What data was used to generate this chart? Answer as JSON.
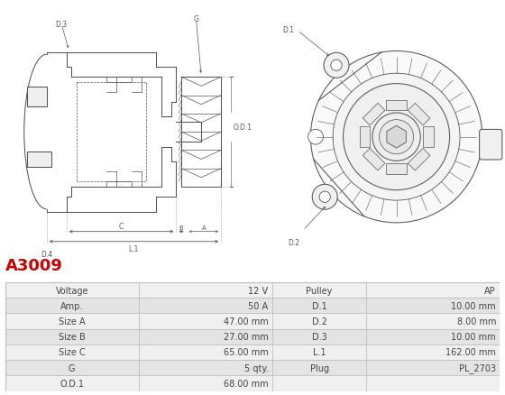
{
  "title": "A3009",
  "title_color": "#cc0000",
  "table_rows": [
    [
      "Voltage",
      "12 V",
      "Pulley",
      "AP"
    ],
    [
      "Amp.",
      "50 A",
      "D.1",
      "10.00 mm"
    ],
    [
      "Size A",
      "47.00 mm",
      "D.2",
      "8.00 mm"
    ],
    [
      "Size B",
      "27.00 mm",
      "D.3",
      "10.00 mm"
    ],
    [
      "Size C",
      "65.00 mm",
      "L.1",
      "162.00 mm"
    ],
    [
      "G",
      "5 qty.",
      "Plug",
      "PL_2703"
    ],
    [
      "O.D.1",
      "68.00 mm",
      "",
      ""
    ]
  ],
  "bg_color": "#ffffff",
  "table_row_bg1": "#f0f0f0",
  "table_row_bg2": "#e4e4e4",
  "table_border_color": "#bbbbbb",
  "text_color": "#444444",
  "line_color": "#555555",
  "fig_width": 5.6,
  "fig_height": 4.39,
  "dpi": 100
}
